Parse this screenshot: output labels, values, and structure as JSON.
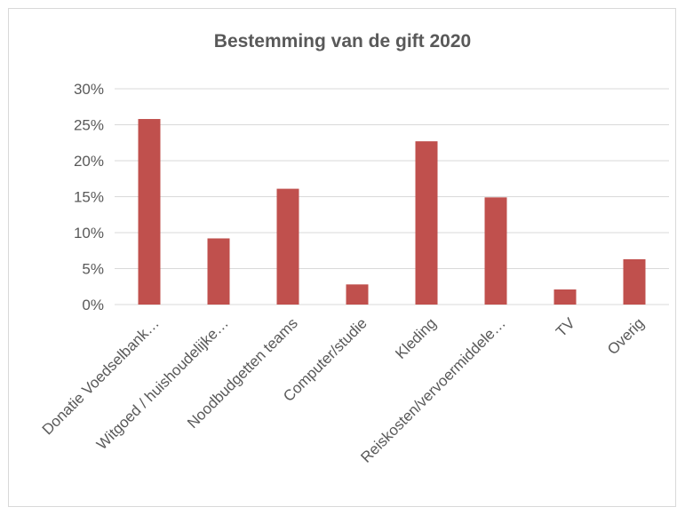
{
  "chart_data": {
    "type": "bar",
    "title": "Bestemming van de gift 2020",
    "xlabel": "",
    "ylabel": "",
    "categories": [
      "Donatie Voedselbank…",
      "Witgoed / huishoudelijke…",
      "Noodbudgetten teams",
      "Computer/studie",
      "Kleding",
      "Reiskosten/vervoermiddele…",
      "TV",
      "Overig"
    ],
    "values": [
      25.8,
      9.2,
      16.1,
      2.8,
      22.7,
      14.9,
      2.1,
      6.3
    ],
    "ylim": [
      0,
      30
    ],
    "yticks": [
      0,
      5,
      10,
      15,
      20,
      25,
      30
    ],
    "ytick_labels": [
      "0%",
      "5%",
      "10%",
      "15%",
      "20%",
      "25%",
      "30%"
    ],
    "grid": true,
    "legend": "none",
    "bar_color": "#c0504d",
    "grid_color": "#d9d9d9"
  }
}
